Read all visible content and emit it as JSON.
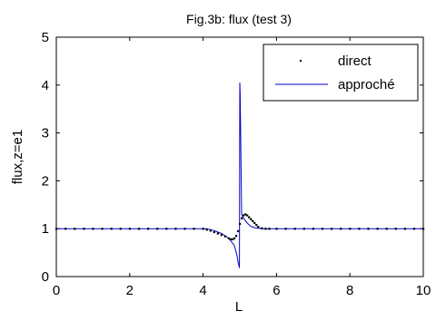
{
  "chart_data": {
    "type": "line",
    "title": "Fig.3b: flux (test 3)",
    "xlabel": "L",
    "ylabel": "flux,z=e1",
    "xlim": [
      0,
      10
    ],
    "ylim": [
      0,
      5
    ],
    "xticks": [
      "0",
      "2",
      "4",
      "6",
      "8",
      "10"
    ],
    "yticks": [
      "0",
      "1",
      "2",
      "3",
      "4",
      "5"
    ],
    "grid": false,
    "legend_position": "top-right",
    "colors": {
      "direct": "#000000",
      "approche": "#0000cc"
    },
    "series": [
      {
        "name": "direct",
        "style": "dots",
        "x": [
          0.0,
          0.25,
          0.5,
          0.75,
          1.0,
          1.25,
          1.5,
          1.75,
          2.0,
          2.25,
          2.5,
          2.75,
          3.0,
          3.25,
          3.5,
          3.75,
          4.0,
          4.1,
          4.2,
          4.3,
          4.4,
          4.5,
          4.6,
          4.7,
          4.75,
          4.8,
          4.85,
          4.9,
          4.95,
          5.0,
          5.05,
          5.1,
          5.15,
          5.2,
          5.25,
          5.3,
          5.35,
          5.4,
          5.45,
          5.5,
          5.6,
          5.7,
          5.8,
          6.0,
          6.25,
          6.5,
          6.75,
          7.0,
          7.25,
          7.5,
          7.75,
          8.0,
          8.25,
          8.5,
          8.75,
          9.0,
          9.25,
          9.5,
          9.75,
          10.0
        ],
        "y": [
          1.0,
          1.0,
          1.0,
          1.0,
          1.0,
          1.0,
          1.0,
          1.0,
          1.0,
          1.0,
          1.0,
          1.0,
          1.0,
          1.0,
          1.0,
          1.0,
          1.0,
          0.98,
          0.96,
          0.93,
          0.9,
          0.87,
          0.84,
          0.8,
          0.78,
          0.78,
          0.8,
          0.85,
          0.95,
          1.1,
          1.22,
          1.28,
          1.3,
          1.28,
          1.24,
          1.2,
          1.16,
          1.12,
          1.08,
          1.04,
          1.01,
          1.0,
          1.0,
          1.0,
          1.0,
          1.0,
          1.0,
          1.0,
          1.0,
          1.0,
          1.0,
          1.0,
          1.0,
          1.0,
          1.0,
          1.0,
          1.0,
          1.0,
          1.0,
          1.0
        ]
      },
      {
        "name": "approché",
        "style": "line",
        "x": [
          0.0,
          4.1,
          4.3,
          4.5,
          4.7,
          4.85,
          4.92,
          4.96,
          4.99,
          5.0,
          5.01,
          5.05,
          5.1,
          5.2,
          5.3,
          5.4,
          5.5,
          5.6,
          5.7,
          10.0
        ],
        "y": [
          1.0,
          1.0,
          0.96,
          0.9,
          0.8,
          0.65,
          0.45,
          0.28,
          0.18,
          4.05,
          3.8,
          1.3,
          1.22,
          1.12,
          1.05,
          1.02,
          1.01,
          1.0,
          1.0,
          1.0
        ]
      }
    ]
  }
}
